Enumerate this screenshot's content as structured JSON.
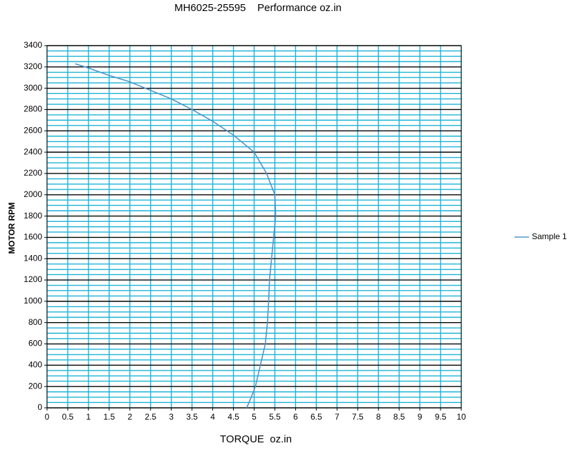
{
  "chart_data": {
    "type": "line",
    "title": "MH6025-25595    Performance oz.in",
    "x_label": "TORQUE  oz.in",
    "y_label": "MOTOR RPM",
    "series": [
      {
        "name": "Sample 1",
        "color": "#4f95c9",
        "x": [
          0.68,
          1,
          1.5,
          2,
          2.5,
          3,
          3.5,
          4,
          4.5,
          5,
          5.3,
          5.5,
          5.52,
          5.47,
          5.42,
          5.37,
          5.35,
          5.32,
          5.27,
          5.15,
          5.03,
          4.93,
          4.82
        ],
        "values": [
          3230,
          3190,
          3120,
          3060,
          2980,
          2900,
          2800,
          2690,
          2560,
          2400,
          2200,
          2000,
          1800,
          1600,
          1400,
          1200,
          1000,
          800,
          600,
          400,
          200,
          100,
          0
        ]
      }
    ],
    "xlim": [
      0,
      10
    ],
    "xticks": [
      0,
      0.5,
      1,
      1.5,
      2,
      2.5,
      3,
      3.5,
      4,
      4.5,
      5,
      5.5,
      6,
      6.5,
      7,
      7.5,
      8,
      8.5,
      9,
      9.5,
      10
    ],
    "ylim": [
      0,
      3400
    ],
    "yticks": [
      0,
      200,
      400,
      600,
      800,
      1000,
      1200,
      1400,
      1600,
      1800,
      2000,
      2200,
      2400,
      2600,
      2800,
      3000,
      3200,
      3400
    ],
    "grid": true,
    "minor_grid": true,
    "grid_color": "#1ab2d6",
    "legend": "right"
  }
}
